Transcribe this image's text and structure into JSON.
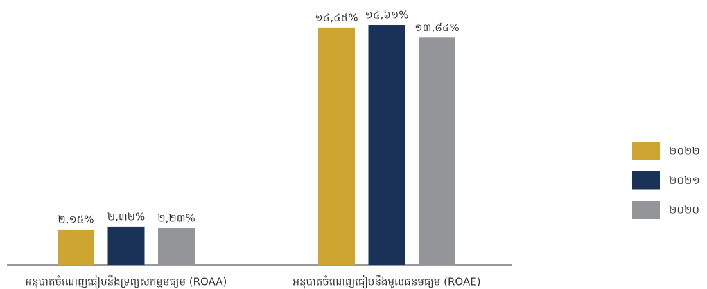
{
  "chart_data": {
    "type": "bar",
    "categories": [
      "អនុបាតចំណេញធៀបនឹងទ្រព្យសកម្មមធ្យម (ROAA)",
      "អនុបាតចំណេញធៀបនឹងមូលធនមធ្យម (ROAE)"
    ],
    "series": [
      {
        "name": "២០២២",
        "color": "#cfa532",
        "values": [
          2.15,
          14.45
        ],
        "value_labels": [
          "២,១៥%",
          "១៤,៤៥%"
        ]
      },
      {
        "name": "២០២១",
        "color": "#1a3158",
        "values": [
          2.32,
          14.61
        ],
        "value_labels": [
          "២,៣២%",
          "១៤,៦១%"
        ]
      },
      {
        "name": "២០២០",
        "color": "#939598",
        "values": [
          2.23,
          13.84
        ],
        "value_labels": [
          "២,២៣%",
          "១៣,៨៤%"
        ]
      }
    ],
    "ylim": [
      0,
      16
    ],
    "legend": "right"
  }
}
